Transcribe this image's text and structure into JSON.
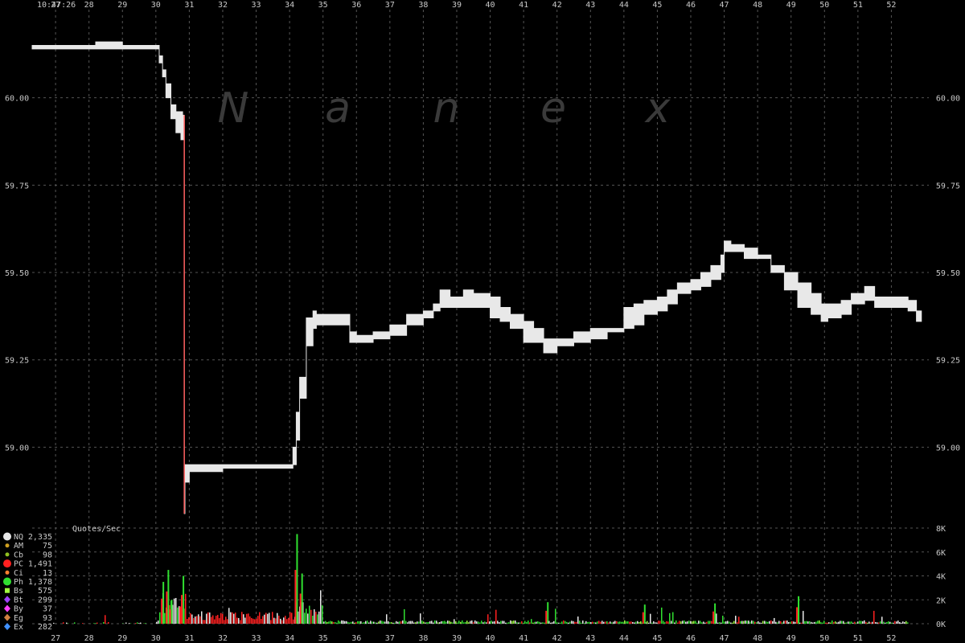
{
  "header": {
    "time": "10:47:26"
  },
  "watermark": [
    "N",
    "a",
    "n",
    "e",
    "x"
  ],
  "chart_data": [
    {
      "type": "line",
      "title": "",
      "x_ticks": [
        "27",
        "28",
        "29",
        "30",
        "31",
        "32",
        "33",
        "34",
        "35",
        "36",
        "37",
        "38",
        "39",
        "40",
        "41",
        "42",
        "43",
        "44",
        "45",
        "46",
        "47",
        "48",
        "49",
        "50",
        "51",
        "52"
      ],
      "y_ticks": [
        "60.00",
        "59.75",
        "59.50",
        "59.25",
        "59.00"
      ],
      "x_range": [
        26.3,
        53.0
      ],
      "ylim": [
        58.78,
        60.25
      ],
      "grid": true,
      "series": [
        {
          "x": [
            26.3,
            27.5,
            28.2,
            28.7,
            29.0,
            29.5,
            30.0,
            30.1,
            30.2,
            30.3,
            30.45,
            30.6,
            30.75,
            30.8,
            30.85,
            30.87,
            31.0,
            31.5,
            32.0,
            33.0,
            34.0,
            34.1,
            34.2,
            34.3,
            34.5,
            34.7,
            34.8,
            35.0,
            35.5,
            35.8,
            36.0,
            36.5,
            37.0,
            37.5,
            38.0,
            38.3,
            38.5,
            38.8,
            39.2,
            39.5,
            40.0,
            40.3,
            40.6,
            41.0,
            41.3,
            41.6,
            42.0,
            42.5,
            43.0,
            43.5,
            44.0,
            44.3,
            44.6,
            45.0,
            45.3,
            45.6,
            46.0,
            46.3,
            46.6,
            46.9,
            47.0,
            47.2,
            47.6,
            48.0,
            48.4,
            48.8,
            49.2,
            49.6,
            49.9,
            50.1,
            50.5,
            50.8,
            51.2,
            51.5,
            52.0,
            52.5,
            52.75,
            52.85
          ],
          "hi": [
            60.15,
            60.15,
            60.16,
            60.16,
            60.15,
            60.15,
            60.15,
            60.12,
            60.08,
            60.04,
            59.98,
            59.96,
            59.96,
            59.95,
            58.95,
            58.95,
            58.95,
            58.95,
            58.95,
            58.95,
            58.95,
            59.0,
            59.1,
            59.2,
            59.37,
            59.39,
            59.38,
            59.38,
            59.38,
            59.33,
            59.32,
            59.33,
            59.35,
            59.38,
            59.39,
            59.41,
            59.45,
            59.43,
            59.45,
            59.44,
            59.43,
            59.4,
            59.38,
            59.36,
            59.34,
            59.31,
            59.31,
            59.33,
            59.34,
            59.34,
            59.4,
            59.41,
            59.42,
            59.43,
            59.45,
            59.47,
            59.48,
            59.5,
            59.52,
            59.55,
            59.59,
            59.58,
            59.57,
            59.55,
            59.52,
            59.5,
            59.47,
            59.44,
            59.41,
            59.41,
            59.42,
            59.44,
            59.46,
            59.43,
            59.43,
            59.42,
            59.39,
            59.39
          ],
          "lo": [
            60.14,
            60.14,
            60.14,
            60.14,
            60.14,
            60.14,
            60.14,
            60.1,
            60.06,
            60.0,
            59.94,
            59.9,
            59.88,
            59.88,
            58.81,
            58.9,
            58.93,
            58.93,
            58.94,
            58.94,
            58.94,
            58.95,
            59.02,
            59.14,
            59.29,
            59.34,
            59.35,
            59.35,
            59.35,
            59.3,
            59.3,
            59.31,
            59.32,
            59.35,
            59.37,
            59.39,
            59.4,
            59.4,
            59.4,
            59.4,
            59.37,
            59.36,
            59.34,
            59.3,
            59.3,
            59.27,
            59.29,
            59.3,
            59.31,
            59.33,
            59.34,
            59.35,
            59.38,
            59.39,
            59.41,
            59.44,
            59.45,
            59.46,
            59.48,
            59.5,
            59.56,
            59.56,
            59.54,
            59.54,
            59.5,
            59.45,
            59.4,
            59.38,
            59.36,
            59.37,
            59.38,
            59.41,
            59.42,
            59.4,
            59.4,
            59.39,
            59.36,
            59.36
          ]
        }
      ]
    },
    {
      "type": "bar",
      "title": "Quotes/Sec",
      "y_ticks": [
        "8K",
        "6K",
        "4K",
        "2K",
        "0K"
      ],
      "ylim": [
        0,
        8000
      ],
      "x_range": [
        26.3,
        53.0
      ],
      "peaks": [
        {
          "x": 30.2,
          "v": 3500
        },
        {
          "x": 30.35,
          "v": 4500
        },
        {
          "x": 30.45,
          "v": 2000
        },
        {
          "x": 30.75,
          "v": 2400
        },
        {
          "x": 30.8,
          "v": 4000
        },
        {
          "x": 34.2,
          "v": 7500
        },
        {
          "x": 34.35,
          "v": 4200
        },
        {
          "x": 41.7,
          "v": 1800
        },
        {
          "x": 44.6,
          "v": 1600
        },
        {
          "x": 46.7,
          "v": 1700
        },
        {
          "x": 49.2,
          "v": 2300
        }
      ],
      "legend": [
        {
          "name": "NQ",
          "value": "2,335",
          "color": "#e8e8e8",
          "marker": "circle-large"
        },
        {
          "name": "AM",
          "value": "75",
          "color": "#d0a020",
          "marker": "circle"
        },
        {
          "name": "Cb",
          "value": "98",
          "color": "#90c020",
          "marker": "circle"
        },
        {
          "name": "PC",
          "value": "1,491",
          "color": "#ff2020",
          "marker": "circle-large"
        },
        {
          "name": "Ci",
          "value": "13",
          "color": "#ff8030",
          "marker": "circle"
        },
        {
          "name": "Ph",
          "value": "1,378",
          "color": "#30e030",
          "marker": "circle-large"
        },
        {
          "name": "Bs",
          "value": "575",
          "color": "#a0ff40",
          "marker": "square"
        },
        {
          "name": "Bt",
          "value": "299",
          "color": "#a040ff",
          "marker": "diamond"
        },
        {
          "name": "By",
          "value": "37",
          "color": "#ff40ff",
          "marker": "diamond"
        },
        {
          "name": "Eg",
          "value": "93",
          "color": "#d08040",
          "marker": "diamond"
        },
        {
          "name": "Ex",
          "value": "282",
          "color": "#4090ff",
          "marker": "diamond"
        }
      ]
    }
  ]
}
